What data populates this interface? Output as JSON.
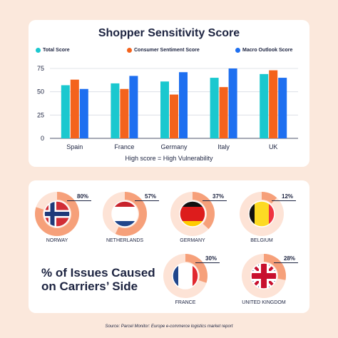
{
  "colors": {
    "background": "#fbe8dc",
    "total": "#1ac8cf",
    "consumer": "#f4631c",
    "macro": "#1e6ff0",
    "ring": "#f6a07a",
    "ring_track": "#fde3d6",
    "text": "#1c2340"
  },
  "chart_data": [
    {
      "type": "bar",
      "title": "Shopper Sensitivity Score",
      "categories": [
        "Spain",
        "France",
        "Germany",
        "Italy",
        "UK"
      ],
      "series": [
        {
          "name": "Total Score",
          "values": [
            57,
            59,
            61,
            65,
            69
          ],
          "color": "#1ac8cf"
        },
        {
          "name": "Consumer Sentiment Score",
          "values": [
            63,
            53,
            47,
            55,
            73
          ],
          "color": "#f4631c"
        },
        {
          "name": "Macro Outlook Score",
          "values": [
            53,
            67,
            71,
            75,
            65
          ],
          "color": "#1e6ff0"
        }
      ],
      "ylim": [
        0,
        75
      ],
      "yticks": [
        "0",
        "25",
        "50",
        "75"
      ],
      "grid": true,
      "legend": "top",
      "caption": "High score = High Vulnerability"
    },
    {
      "type": "pie",
      "title": "% of Issues Caused on Carriers’ Side",
      "items": [
        {
          "country": "NORWAY",
          "pct_label": "80%",
          "value": 80,
          "flag": "norway-flag"
        },
        {
          "country": "NETHERLANDS",
          "pct_label": "57%",
          "value": 57,
          "flag": "netherlands-flag"
        },
        {
          "country": "GERMANY",
          "pct_label": "37%",
          "value": 37,
          "flag": "germany-flag"
        },
        {
          "country": "BELGIUM",
          "pct_label": "12%",
          "value": 12,
          "flag": "belgium-flag"
        },
        {
          "country": "FRANCE",
          "pct_label": "30%",
          "value": 30,
          "flag": "france-flag"
        },
        {
          "country": "UNITED KINGDOM",
          "pct_label": "28%",
          "value": 28,
          "flag": "uk-flag"
        }
      ]
    }
  ],
  "source": "Source: Parcel Monitor: Europe e-commerce logistics market report"
}
